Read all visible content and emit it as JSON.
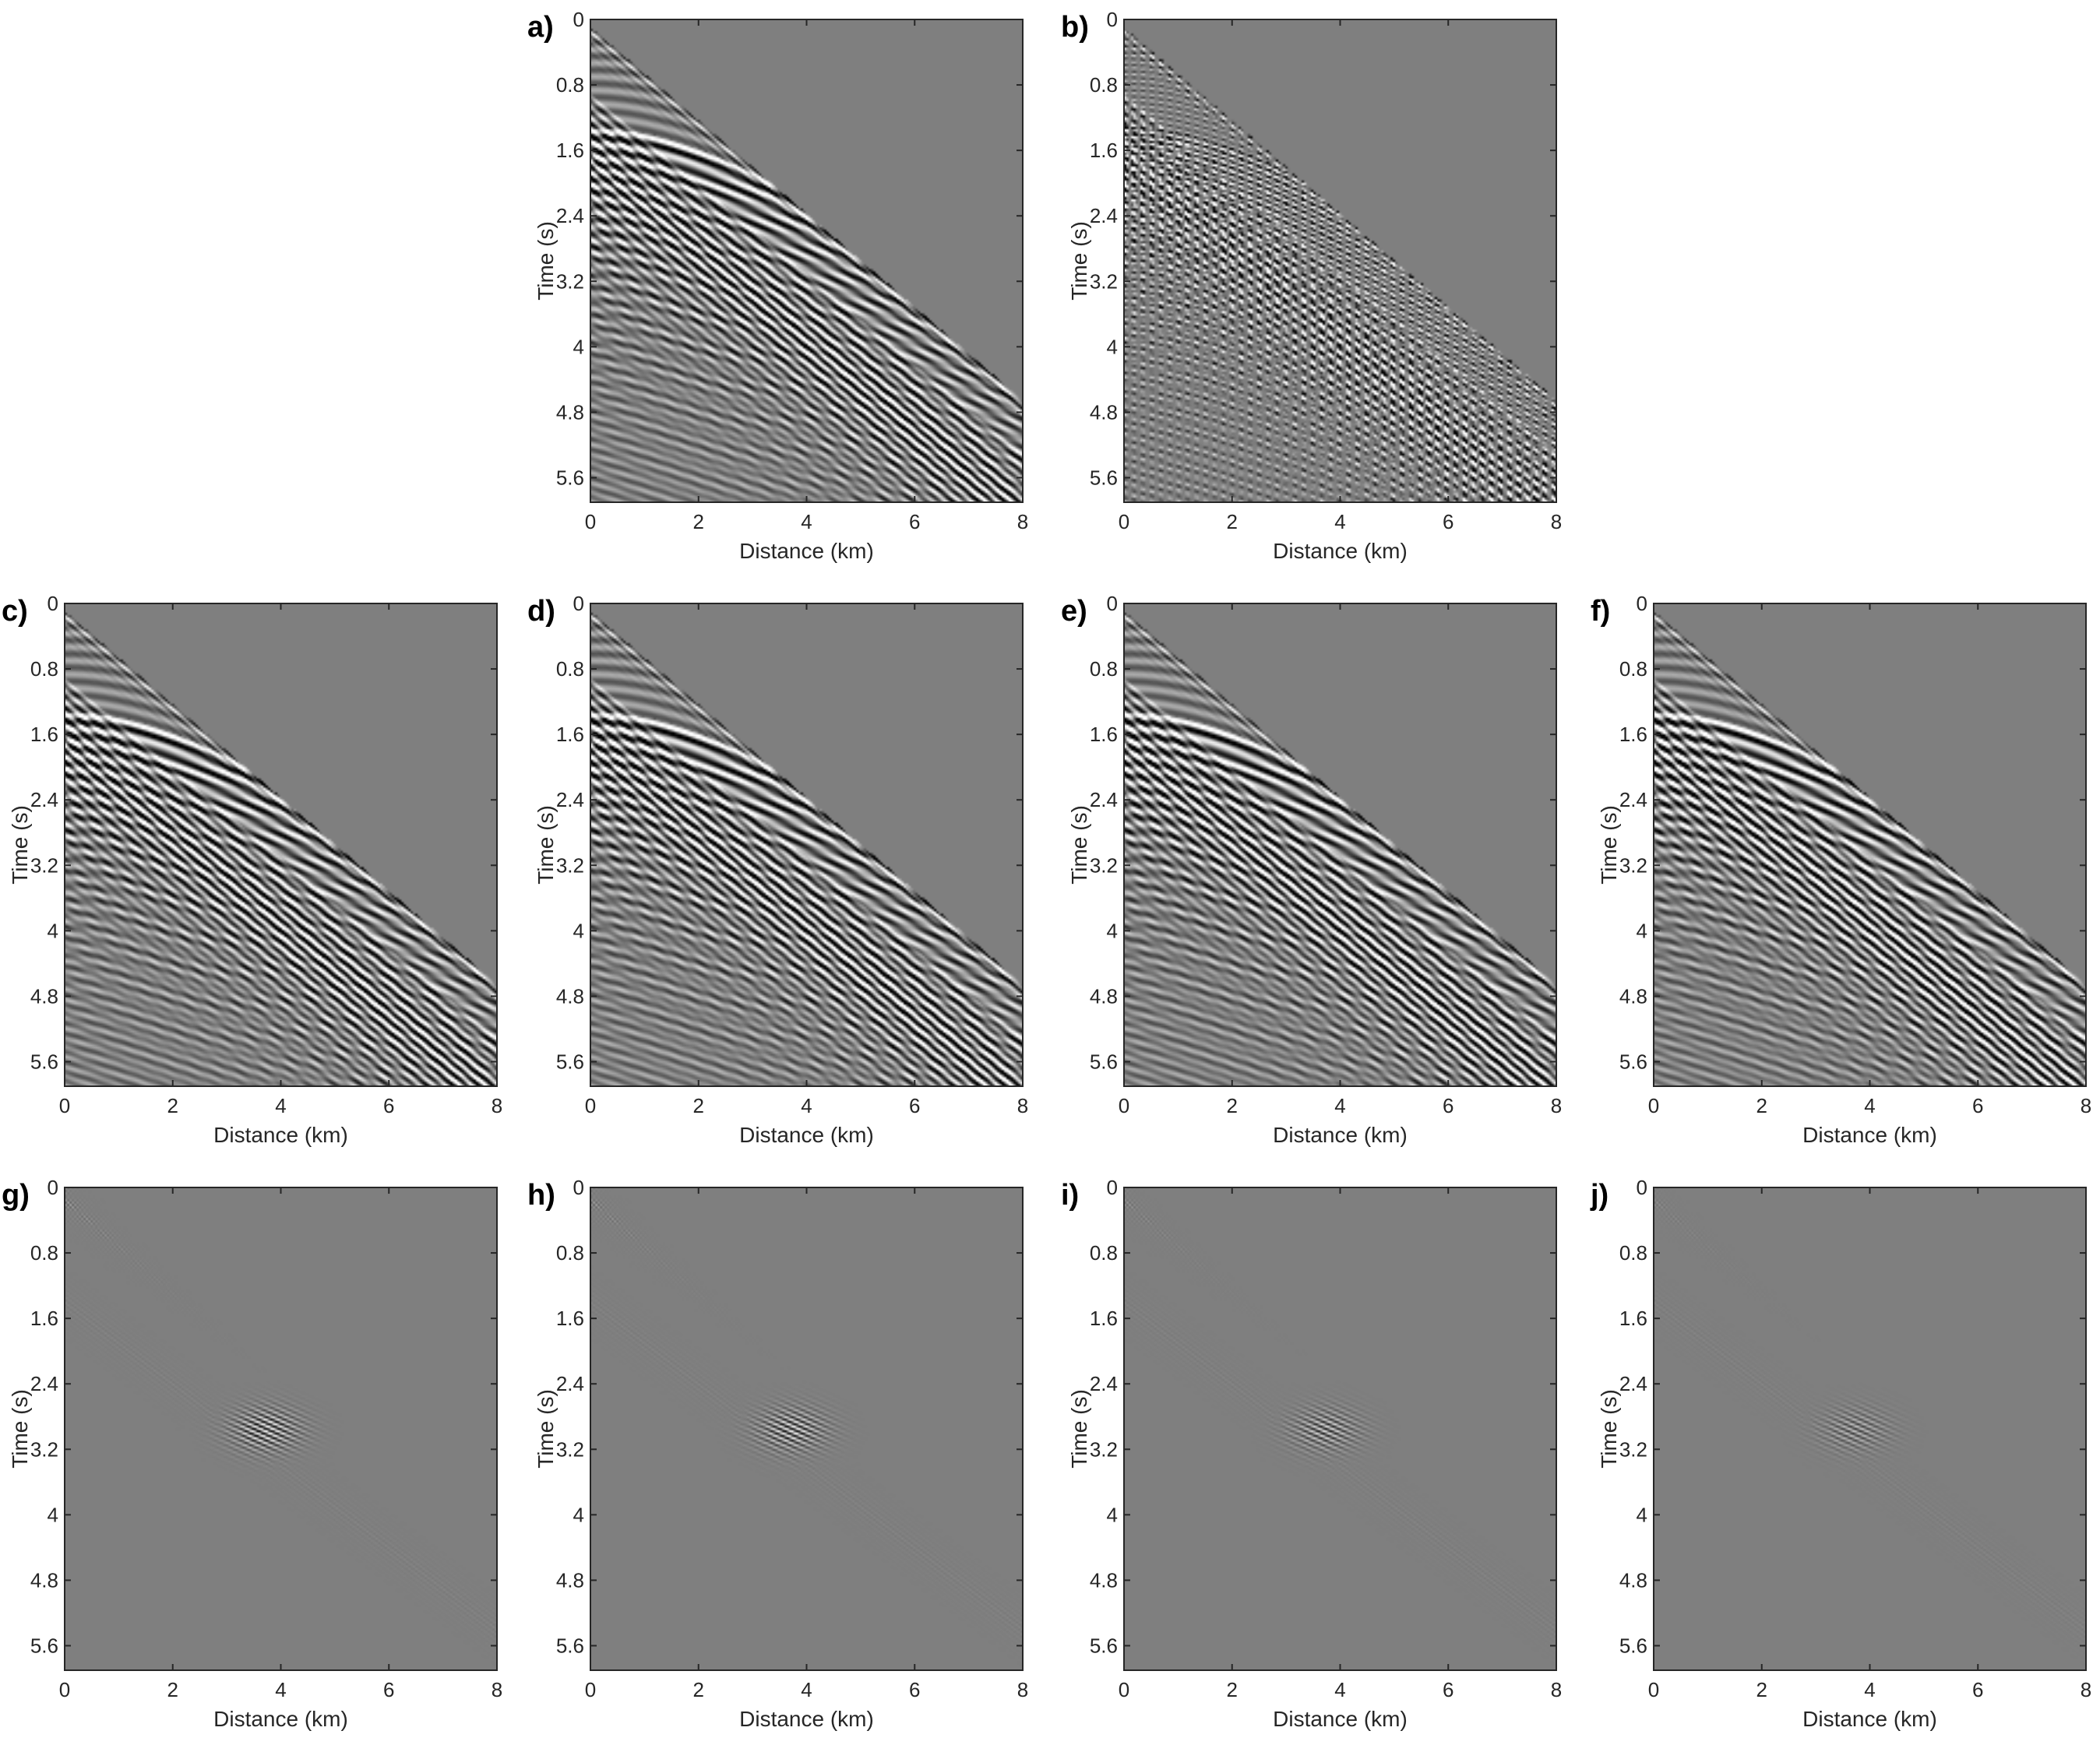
{
  "colors": {
    "background_gray": "#7f7f7f",
    "axis": "#262626",
    "positive": "#ffffff",
    "negative": "#000000"
  },
  "chart_data": [
    {
      "id": "a",
      "panel_label": "a)",
      "type": "heatmap",
      "kind": "signal",
      "style": "smooth",
      "xlabel": "Distance (km)",
      "ylabel": "Time (s)",
      "xlim": [
        0,
        8
      ],
      "ylim": [
        0,
        5.9
      ],
      "xticks": [
        "0",
        "2",
        "4",
        "6",
        "8"
      ],
      "yticks": [
        "0",
        "0.8",
        "1.6",
        "2.4",
        "3.2",
        "4",
        "4.8",
        "5.6"
      ]
    },
    {
      "id": "b",
      "panel_label": "b)",
      "type": "heatmap",
      "kind": "signal",
      "style": "aliased",
      "xlabel": "Distance (km)",
      "ylabel": "Time (s)",
      "xlim": [
        0,
        8
      ],
      "ylim": [
        0,
        5.9
      ],
      "xticks": [
        "0",
        "2",
        "4",
        "6",
        "8"
      ],
      "yticks": [
        "0",
        "0.8",
        "1.6",
        "2.4",
        "3.2",
        "4",
        "4.8",
        "5.6"
      ]
    },
    {
      "id": "c",
      "panel_label": "c)",
      "type": "heatmap",
      "kind": "signal",
      "style": "smooth",
      "xlabel": "Distance (km)",
      "ylabel": "Time (s)",
      "xlim": [
        0,
        8
      ],
      "ylim": [
        0,
        5.9
      ],
      "xticks": [
        "0",
        "2",
        "4",
        "6",
        "8"
      ],
      "yticks": [
        "0",
        "0.8",
        "1.6",
        "2.4",
        "3.2",
        "4",
        "4.8",
        "5.6"
      ]
    },
    {
      "id": "d",
      "panel_label": "d)",
      "type": "heatmap",
      "kind": "signal",
      "style": "smooth",
      "xlabel": "Distance (km)",
      "ylabel": "Time (s)",
      "xlim": [
        0,
        8
      ],
      "ylim": [
        0,
        5.9
      ],
      "xticks": [
        "0",
        "2",
        "4",
        "6",
        "8"
      ],
      "yticks": [
        "0",
        "0.8",
        "1.6",
        "2.4",
        "3.2",
        "4",
        "4.8",
        "5.6"
      ]
    },
    {
      "id": "e",
      "panel_label": "e)",
      "type": "heatmap",
      "kind": "signal",
      "style": "smooth",
      "xlabel": "Distance (km)",
      "ylabel": "Time (s)",
      "xlim": [
        0,
        8
      ],
      "ylim": [
        0,
        5.9
      ],
      "xticks": [
        "0",
        "2",
        "4",
        "6",
        "8"
      ],
      "yticks": [
        "0",
        "0.8",
        "1.6",
        "2.4",
        "3.2",
        "4",
        "4.8",
        "5.6"
      ]
    },
    {
      "id": "f",
      "panel_label": "f)",
      "type": "heatmap",
      "kind": "signal",
      "style": "smooth",
      "xlabel": "Distance (km)",
      "ylabel": "Time (s)",
      "xlim": [
        0,
        8
      ],
      "ylim": [
        0,
        5.9
      ],
      "xticks": [
        "0",
        "2",
        "4",
        "6",
        "8"
      ],
      "yticks": [
        "0",
        "0.8",
        "1.6",
        "2.4",
        "3.2",
        "4",
        "4.8",
        "5.6"
      ]
    },
    {
      "id": "g",
      "panel_label": "g)",
      "type": "heatmap",
      "kind": "residual",
      "strength": 1.0,
      "xlabel": "Distance (km)",
      "ylabel": "Time (s)",
      "xlim": [
        0,
        8
      ],
      "ylim": [
        0,
        5.9
      ],
      "xticks": [
        "0",
        "2",
        "4",
        "6",
        "8"
      ],
      "yticks": [
        "0",
        "0.8",
        "1.6",
        "2.4",
        "3.2",
        "4",
        "4.8",
        "5.6"
      ]
    },
    {
      "id": "h",
      "panel_label": "h)",
      "type": "heatmap",
      "kind": "residual",
      "strength": 0.9,
      "xlabel": "Distance (km)",
      "ylabel": "Time (s)",
      "xlim": [
        0,
        8
      ],
      "ylim": [
        0,
        5.9
      ],
      "xticks": [
        "0",
        "2",
        "4",
        "6",
        "8"
      ],
      "yticks": [
        "0",
        "0.8",
        "1.6",
        "2.4",
        "3.2",
        "4",
        "4.8",
        "5.6"
      ]
    },
    {
      "id": "i",
      "panel_label": "i)",
      "type": "heatmap",
      "kind": "residual",
      "strength": 0.7,
      "xlabel": "Distance (km)",
      "ylabel": "Time (s)",
      "xlim": [
        0,
        8
      ],
      "ylim": [
        0,
        5.9
      ],
      "xticks": [
        "0",
        "2",
        "4",
        "6",
        "8"
      ],
      "yticks": [
        "0",
        "0.8",
        "1.6",
        "2.4",
        "3.2",
        "4",
        "4.8",
        "5.6"
      ]
    },
    {
      "id": "j",
      "panel_label": "j)",
      "type": "heatmap",
      "kind": "residual",
      "strength": 0.5,
      "xlabel": "Distance (km)",
      "ylabel": "Time (s)",
      "xlim": [
        0,
        8
      ],
      "ylim": [
        0,
        5.9
      ],
      "xticks": [
        "0",
        "2",
        "4",
        "6",
        "8"
      ],
      "yticks": [
        "0",
        "0.8",
        "1.6",
        "2.4",
        "3.2",
        "4",
        "4.8",
        "5.6"
      ]
    }
  ]
}
